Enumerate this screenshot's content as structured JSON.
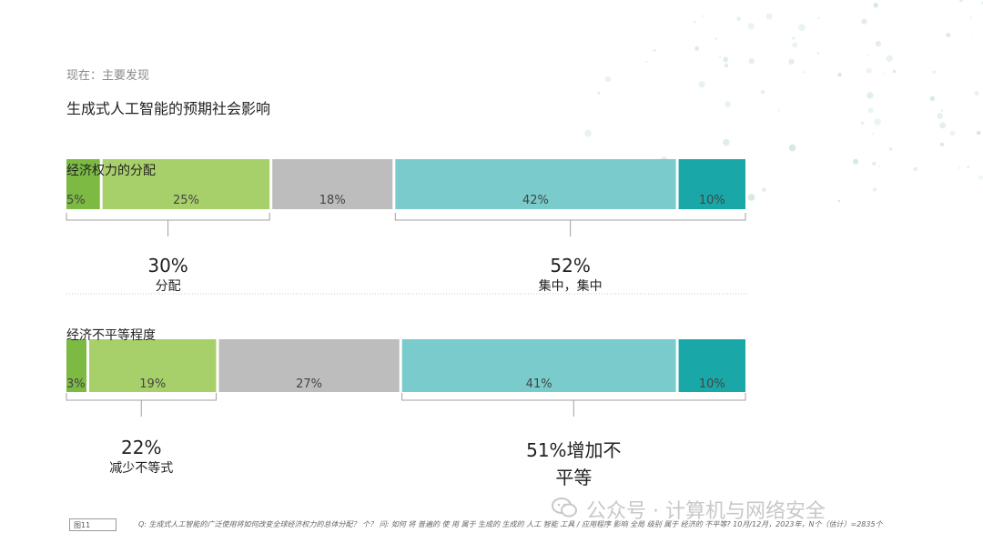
{
  "breadcrumb": "现在：主要发现",
  "page_title": "生成式人工智能的预期社会影响",
  "colors": {
    "dark_green": "#7cba43",
    "light_green": "#a8d06a",
    "gray": "#bdbdbd",
    "light_teal": "#7acbcb",
    "dark_teal": "#1aa7a7",
    "bracket": "#a0a0a0"
  },
  "chart_data": [
    {
      "type": "bar",
      "stacked": true,
      "orientation": "horizontal",
      "title": "经济权力的分配",
      "categories": [
        "经济权力的分配"
      ],
      "series": [
        {
          "values": [
            5
          ]
        },
        {
          "values": [
            25
          ]
        },
        {
          "values": [
            18
          ]
        },
        {
          "values": [
            42
          ]
        },
        {
          "values": [
            10
          ]
        }
      ],
      "data_labels": [
        "5%",
        "25%",
        "18%",
        "42%",
        "10%"
      ],
      "summaries": [
        {
          "value": "30%",
          "label": "分配"
        },
        {
          "value": "52%",
          "label": "集中，集中"
        }
      ]
    },
    {
      "type": "bar",
      "stacked": true,
      "orientation": "horizontal",
      "title": "经济不平等程度",
      "categories": [
        "经济不平等程度"
      ],
      "series": [
        {
          "values": [
            3
          ]
        },
        {
          "values": [
            19
          ]
        },
        {
          "values": [
            27
          ]
        },
        {
          "values": [
            41
          ]
        },
        {
          "values": [
            10
          ]
        }
      ],
      "data_labels": [
        "3%",
        "19%",
        "27%",
        "41%",
        "10%"
      ],
      "summaries": [
        {
          "value": "22%",
          "label": "减少不等式"
        },
        {
          "value": "",
          "label": "51%增加不平等"
        }
      ]
    }
  ],
  "footer": {
    "figure_label": "图11",
    "note": "Q:  生成式人工智能的广泛使用将如何改变全球经济权力的总体分配？ 个？ 问:  如何 将 普遍的 使 用 属于 生成的   生成的  人工 智能 工具 / 应用程序 影响 全局 级别 属于 经济的 不平等?    10月/12月，2023年，N个（估计）=2835个"
  },
  "watermark": "公众号 · 计算机与网络安全"
}
